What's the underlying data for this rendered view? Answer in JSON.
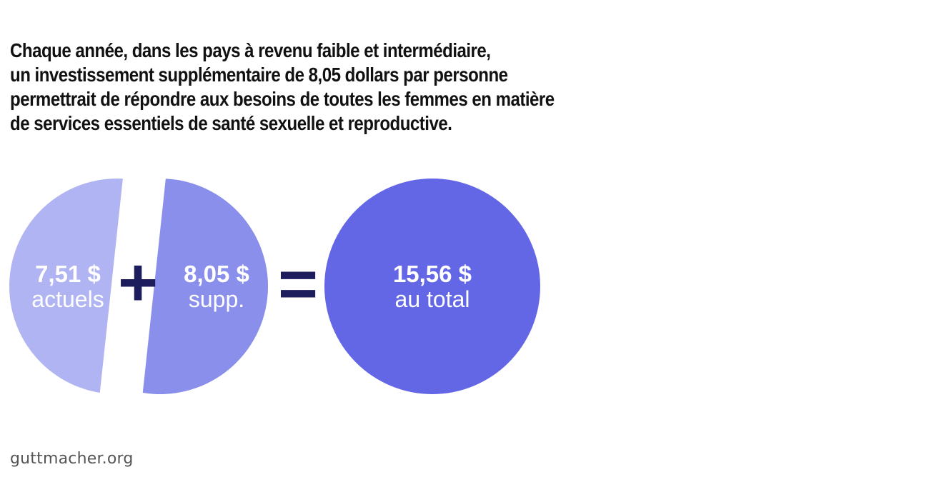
{
  "headline": {
    "lines": [
      "Chaque année, dans les pays à revenu faible et intermédiaire,",
      "un investissement supplémentaire de 8,05 dollars par personne",
      "permettrait de répondre aux besoins de toutes les femmes en matière",
      "de services essentiels de santé sexuelle et reproductive."
    ]
  },
  "operators": {
    "plus": "+",
    "equals": "="
  },
  "footer": {
    "source": "guttmacher.org"
  },
  "colors": {
    "current": "#b0b4f2",
    "additional": "#8a8fec",
    "total": "#6366e5",
    "operator": "#1d1d5e",
    "label": "#ffffff"
  },
  "chart_data": {
    "type": "pie",
    "categories": [
      "actuels",
      "supp.",
      "au total"
    ],
    "values": [
      7.51,
      8.05,
      15.56
    ],
    "value_labels": [
      "7,51 $",
      "8,05 $",
      "15,56 $"
    ],
    "series": [
      {
        "value": 7.51,
        "label": "7,51 $",
        "sublabel": "actuels"
      },
      {
        "value": 8.05,
        "label": "8,05 $",
        "sublabel": "supp."
      }
    ],
    "total": {
      "value": 15.56,
      "label": "15,56 $",
      "sublabel": "au total"
    }
  }
}
